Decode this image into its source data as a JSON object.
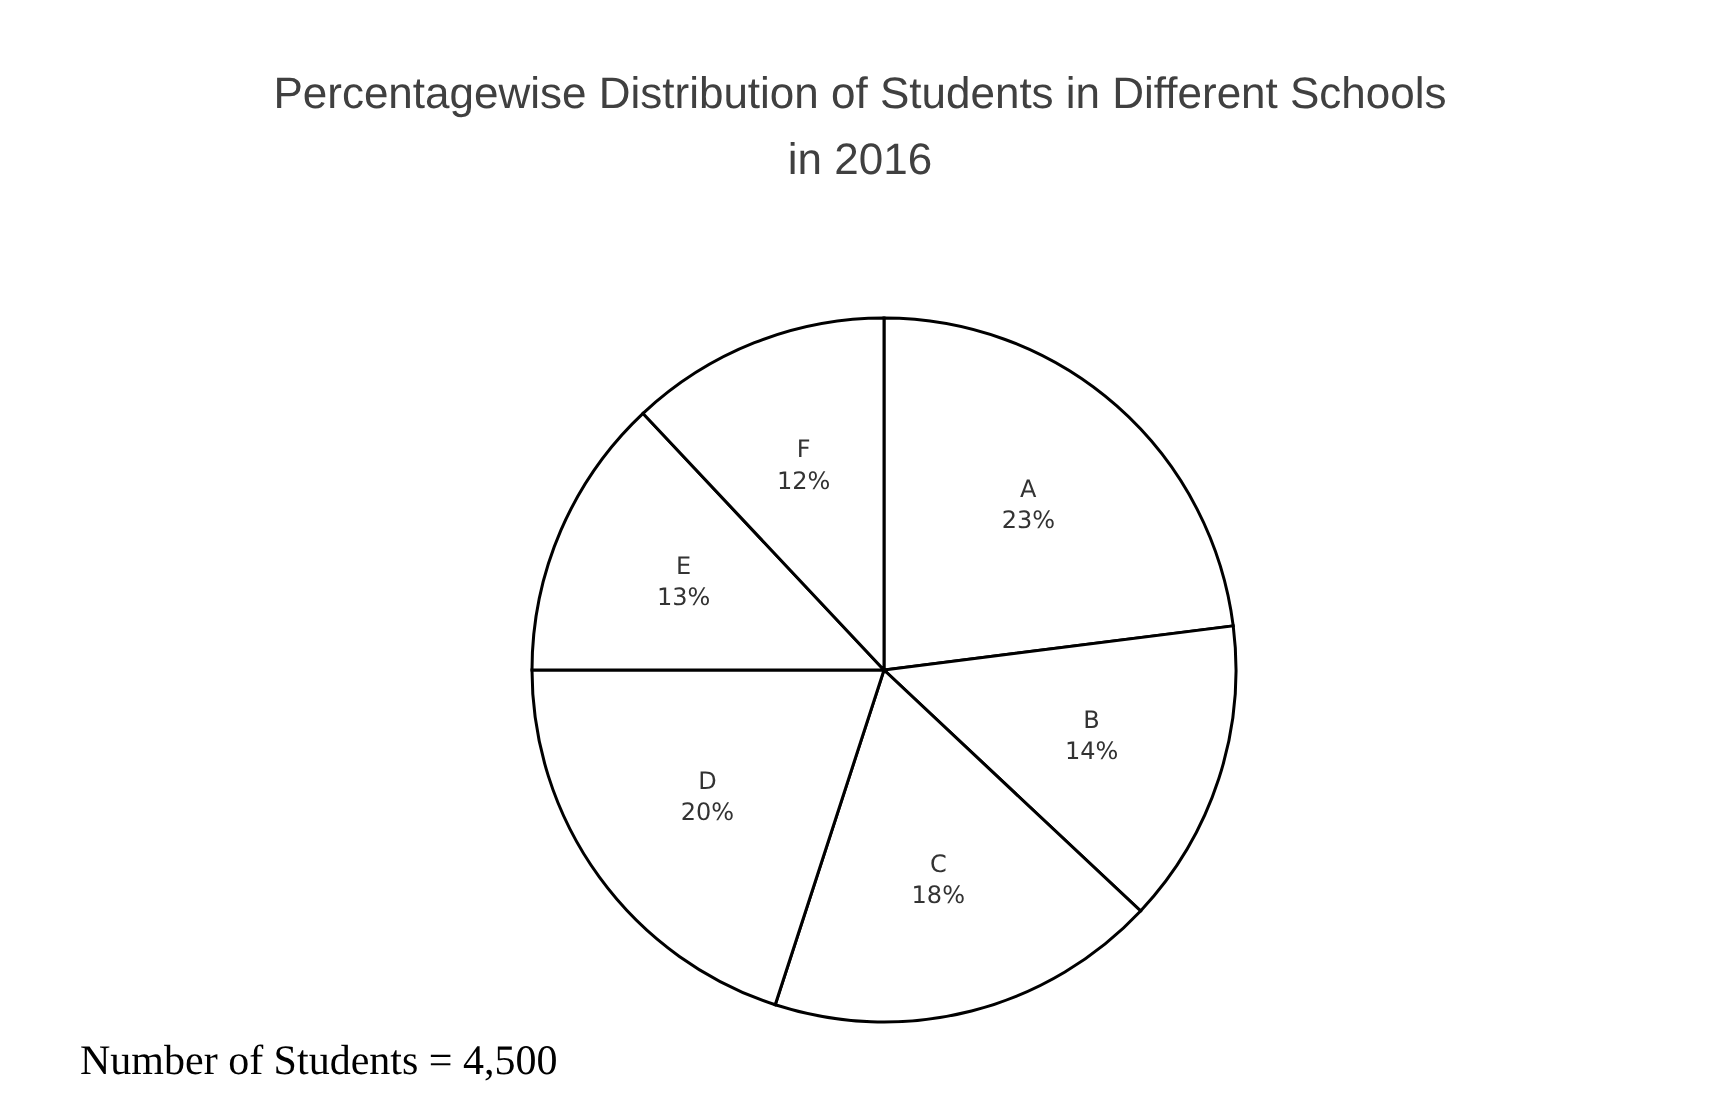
{
  "chart_data": {
    "type": "pie",
    "title": "Percentagewise Distribution of Students in Different Schools in 2016",
    "categories": [
      "A",
      "B",
      "C",
      "D",
      "E",
      "F"
    ],
    "values": [
      23,
      14,
      18,
      20,
      13,
      12
    ],
    "value_labels": [
      "23%",
      "14%",
      "18%",
      "20%",
      "13%",
      "12%"
    ],
    "colors": [
      "#ffffff",
      "#ffffff",
      "#ffffff",
      "#ffffff",
      "#ffffff",
      "#ffffff"
    ],
    "annotations": [
      "Number of Students = 4,500"
    ],
    "legend": false
  }
}
